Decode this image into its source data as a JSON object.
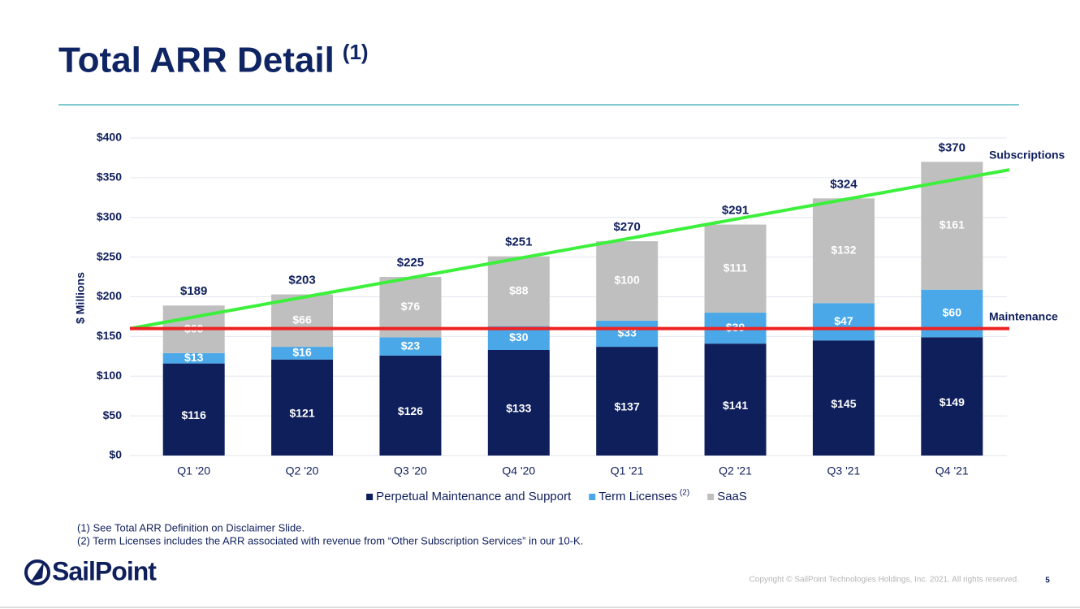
{
  "chart_data": {
    "type": "stacked_bar",
    "title": "Total ARR Detail",
    "title_note": "(1)",
    "ylabel": "$ Millions",
    "categories": [
      "Q1 '20",
      "Q2 '20",
      "Q3 '20",
      "Q4 '20",
      "Q1 '21",
      "Q2 '21",
      "Q3 '21",
      "Q4 '21"
    ],
    "series": [
      {
        "name": "Perpetual Maintenance and Support",
        "color": "#0f1f5c",
        "values": [
          116,
          121,
          126,
          133,
          137,
          141,
          145,
          149
        ],
        "value_labels": [
          "$116",
          "$121",
          "$126",
          "$133",
          "$137",
          "$141",
          "$145",
          "$149"
        ]
      },
      {
        "name": "Term Licenses",
        "legend_note": "(2)",
        "color": "#4aa8e8",
        "values": [
          13,
          16,
          23,
          30,
          33,
          39,
          47,
          60
        ],
        "value_labels": [
          "$13",
          "$16",
          "$23",
          "$30",
          "$33",
          "$39",
          "$47",
          "$60"
        ]
      },
      {
        "name": "SaaS",
        "color": "#bfbfbf",
        "values": [
          60,
          66,
          76,
          88,
          100,
          111,
          132,
          161
        ],
        "value_labels": [
          "$60",
          "$66",
          "$76",
          "$88",
          "$100",
          "$111",
          "$132",
          "$161"
        ]
      }
    ],
    "totals": [
      189,
      203,
      225,
      251,
      270,
      291,
      324,
      370
    ],
    "total_labels": [
      "$189",
      "$203",
      "$225",
      "$251",
      "$270",
      "$291",
      "$324",
      "$370"
    ],
    "ylim": [
      0,
      400
    ],
    "yticks": [
      {
        "value": 0,
        "label": "$0"
      },
      {
        "value": 50,
        "label": "$50"
      },
      {
        "value": 100,
        "label": "$100"
      },
      {
        "value": 150,
        "label": "$150"
      },
      {
        "value": 200,
        "label": "$200"
      },
      {
        "value": 250,
        "label": "$250"
      },
      {
        "value": 300,
        "label": "$300"
      },
      {
        "value": 350,
        "label": "$350"
      },
      {
        "value": 400,
        "label": "$400"
      }
    ],
    "grid": true,
    "annotations": [
      {
        "label": "Subscriptions",
        "start": 160,
        "end": 360,
        "color": "#3cf03c"
      },
      {
        "label": "Maintenance",
        "value": 160,
        "color": "#ee2222"
      }
    ]
  },
  "footnotes": [
    "(1)  See Total ARR Definition on Disclaimer Slide.",
    "(2)  Term Licenses includes the ARR associated with revenue from “Other Subscription Services” in our 10-K."
  ],
  "logo": "SailPoint",
  "copyright": "Copyright © SailPoint Technologies Holdings, Inc. 2021. All rights reserved.",
  "page_number": "5"
}
